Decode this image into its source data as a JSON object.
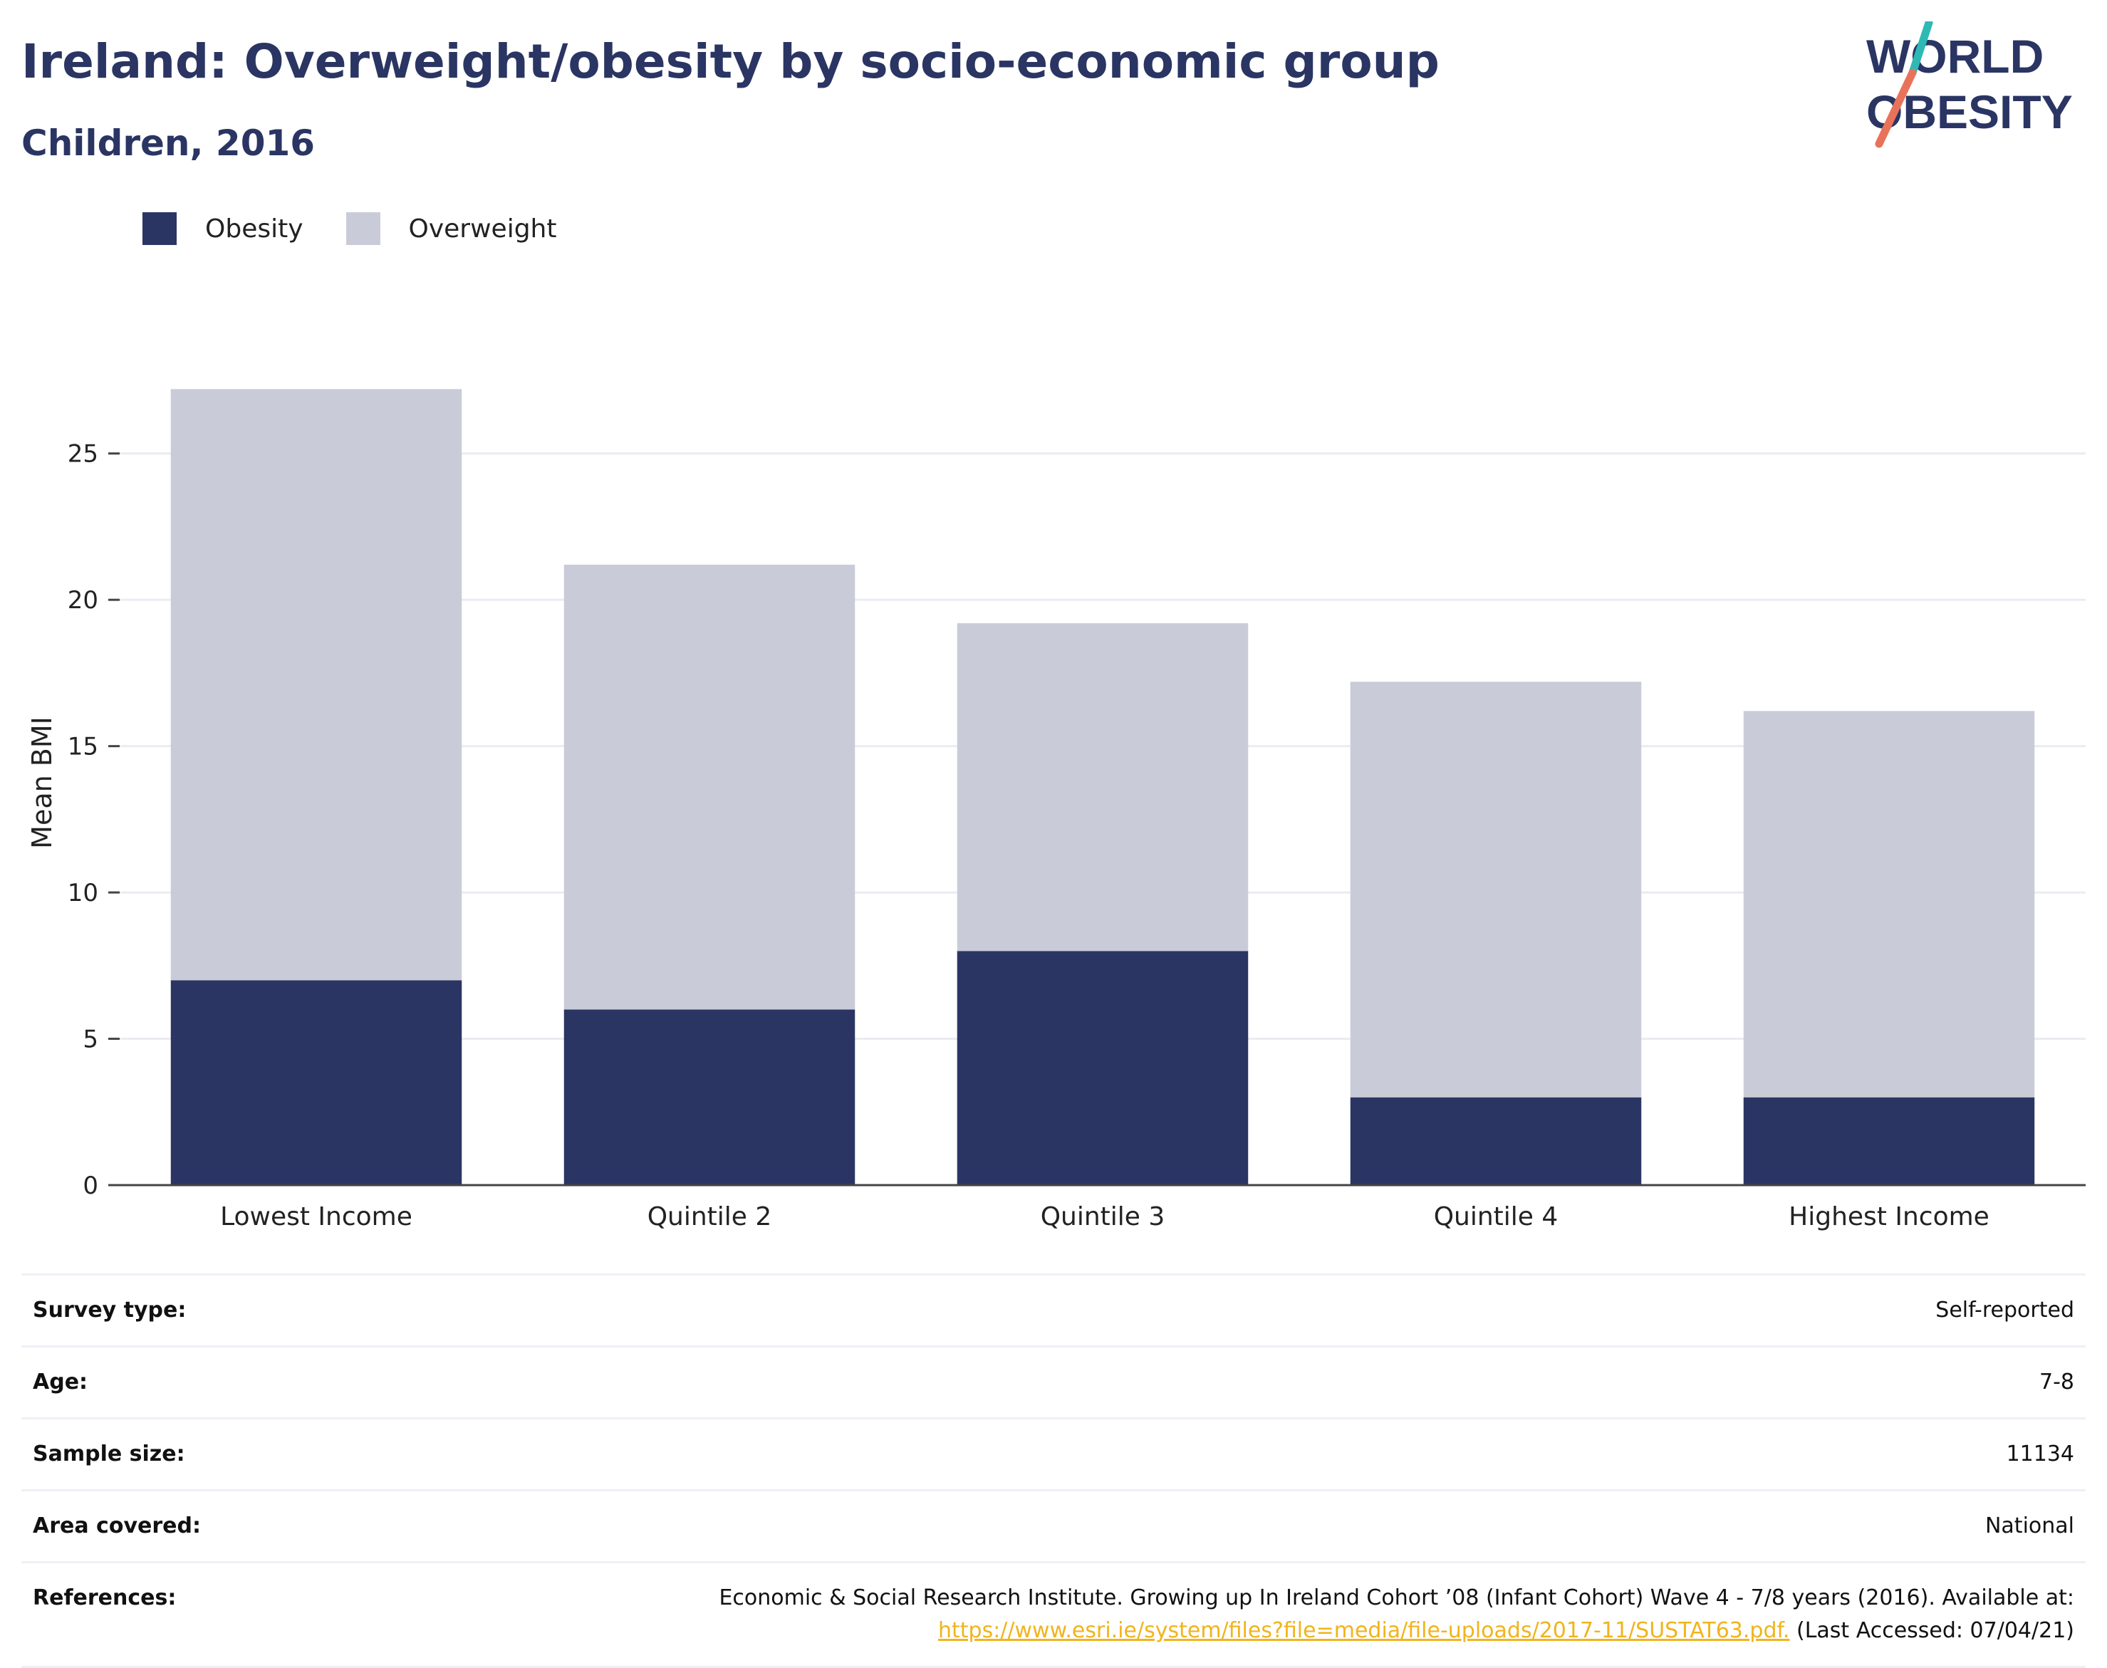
{
  "header": {
    "title": "Ireland: Overweight/obesity by socio-economic group",
    "subtitle": "Children, 2016"
  },
  "logo": {
    "line1": "WORLD",
    "line2": "OBESITY"
  },
  "colors": {
    "obesity": "#2a3563",
    "overweight": "#c9ccd8",
    "title": "#2a3563",
    "logo_teal": "#2fb9b4",
    "logo_coral": "#e8735a",
    "link": "#f0b41c"
  },
  "chart_data": {
    "type": "bar",
    "stacked": true,
    "categories": [
      "Lowest Income",
      "Quintile 2",
      "Quintile 3",
      "Quintile 4",
      "Highest Income"
    ],
    "series": [
      {
        "name": "Obesity",
        "values": [
          7,
          6,
          8,
          3,
          3
        ]
      },
      {
        "name": "Overweight",
        "values": [
          20.2,
          15.2,
          11.2,
          14.2,
          13.2
        ]
      }
    ],
    "title": "Ireland: Overweight/obesity by socio-economic group",
    "subtitle": "Children, 2016",
    "xlabel": "",
    "ylabel": "Mean BMI",
    "ylim": [
      0,
      27.5
    ],
    "yticks": [
      0,
      5,
      10,
      15,
      20,
      25
    ],
    "grid": true,
    "legend": "top-left"
  },
  "info": {
    "survey_type_label": "Survey type:",
    "survey_type_value": "Self-reported",
    "age_label": "Age:",
    "age_value": "7-8",
    "sample_label": "Sample size:",
    "sample_value": "11134",
    "area_label": "Area covered:",
    "area_value": "National",
    "references_label": "References:",
    "references_text": "Economic & Social Research Institute. Growing up In Ireland Cohort ’08 (Infant Cohort) Wave 4 - 7/8 years (2016). Available at:",
    "references_link": "https://www.esri.ie/system/files?file=media/file-uploads/2017-11/SUSTAT63.pdf.",
    "references_accessed": "(Last Accessed: 07/04/21)"
  }
}
